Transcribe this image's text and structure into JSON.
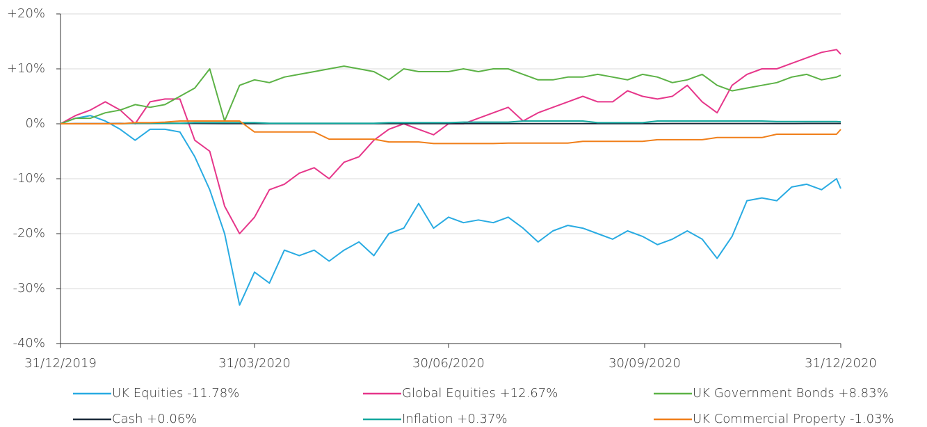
{
  "chart_data": {
    "type": "line",
    "x": [
      "2019-12-31",
      "2020-01-07",
      "2020-01-14",
      "2020-01-21",
      "2020-01-28",
      "2020-02-04",
      "2020-02-11",
      "2020-02-18",
      "2020-02-25",
      "2020-03-03",
      "2020-03-10",
      "2020-03-17",
      "2020-03-24",
      "2020-03-31",
      "2020-04-07",
      "2020-04-14",
      "2020-04-21",
      "2020-04-28",
      "2020-05-05",
      "2020-05-12",
      "2020-05-19",
      "2020-05-26",
      "2020-06-02",
      "2020-06-09",
      "2020-06-16",
      "2020-06-23",
      "2020-06-30",
      "2020-07-07",
      "2020-07-14",
      "2020-07-21",
      "2020-07-28",
      "2020-08-04",
      "2020-08-11",
      "2020-08-18",
      "2020-08-25",
      "2020-09-01",
      "2020-09-08",
      "2020-09-15",
      "2020-09-22",
      "2020-09-29",
      "2020-10-06",
      "2020-10-13",
      "2020-10-20",
      "2020-10-27",
      "2020-11-03",
      "2020-11-10",
      "2020-11-17",
      "2020-11-24",
      "2020-12-01",
      "2020-12-08",
      "2020-12-15",
      "2020-12-22",
      "2020-12-29",
      "2020-12-31"
    ],
    "series": [
      {
        "name": "UK Equities -11.78%",
        "color": "#29abe2",
        "values": [
          0,
          1,
          1.5,
          0.5,
          -1,
          -3,
          -1,
          -1,
          -1.5,
          -6,
          -12,
          -20,
          -33,
          -27,
          -29,
          -23,
          -24,
          -23,
          -25,
          -23,
          -21.5,
          -24,
          -20,
          -19,
          -14.5,
          -19,
          -17,
          -18,
          -17.5,
          -18,
          -17,
          -19,
          -21.5,
          -19.5,
          -18.5,
          -19,
          -20,
          -21,
          -19.5,
          -20.5,
          -22,
          -21,
          -19.5,
          -21,
          -24.5,
          -20.5,
          -14,
          -13.5,
          -14,
          -11.5,
          -11,
          -12,
          -10,
          -11.78
        ]
      },
      {
        "name": "Global Equities +12.67%",
        "color": "#e6368a",
        "values": [
          0,
          1.5,
          2.5,
          4,
          2.5,
          0,
          4,
          4.5,
          4.5,
          -3,
          -5,
          -15,
          -20,
          -17,
          -12,
          -11,
          -9,
          -8,
          -10,
          -7,
          -6,
          -3,
          -1,
          0,
          -1,
          -2,
          0,
          0,
          1,
          2,
          3,
          0.5,
          2,
          3,
          4,
          5,
          4,
          4,
          6,
          5,
          4.5,
          5,
          7,
          4,
          2,
          7,
          9,
          10,
          10,
          11,
          12,
          13,
          13.5,
          12.67
        ]
      },
      {
        "name": "UK Government Bonds +8.83%",
        "color": "#5cb246",
        "values": [
          0,
          1,
          1,
          2,
          2.5,
          3.5,
          3,
          3.5,
          5,
          6.5,
          10,
          0.5,
          7,
          8,
          7.5,
          8.5,
          9,
          9.5,
          10,
          10.5,
          10,
          9.5,
          8,
          10,
          9.5,
          9.5,
          9.5,
          10,
          9.5,
          10,
          10,
          9,
          8,
          8,
          8.5,
          8.5,
          9,
          8.5,
          8,
          9,
          8.5,
          7.5,
          8,
          9,
          7,
          6,
          6.5,
          7,
          7.5,
          8.5,
          9,
          8,
          8.5,
          8.83
        ]
      },
      {
        "name": "Cash +0.06%",
        "color": "#1b2a3a",
        "values": [
          0,
          0.02,
          0.03,
          0.04,
          0.05,
          0.06,
          0.06,
          0.07,
          0.07,
          0.06,
          0.05,
          0.04,
          0.03,
          0.03,
          0.03,
          0.03,
          0.03,
          0.03,
          0.03,
          0.03,
          0.03,
          0.03,
          0.03,
          0.03,
          0.03,
          0.03,
          0.03,
          0.03,
          0.03,
          0.03,
          0.03,
          0.03,
          0.03,
          0.04,
          0.04,
          0.04,
          0.04,
          0.04,
          0.04,
          0.04,
          0.04,
          0.05,
          0.05,
          0.05,
          0.05,
          0.05,
          0.05,
          0.05,
          0.05,
          0.05,
          0.06,
          0.06,
          0.06,
          0.06
        ]
      },
      {
        "name": "Inflation +0.37%",
        "color": "#13a89e",
        "values": [
          0,
          0,
          0,
          0,
          0,
          0.1,
          0.1,
          0.1,
          0.1,
          0.2,
          0.2,
          0.2,
          0.2,
          0.2,
          0.1,
          0.1,
          0.1,
          0.1,
          0.1,
          0.1,
          0.1,
          0.1,
          0.2,
          0.2,
          0.2,
          0.2,
          0.2,
          0.3,
          0.3,
          0.3,
          0.3,
          0.5,
          0.5,
          0.5,
          0.5,
          0.5,
          0.2,
          0.2,
          0.2,
          0.2,
          0.5,
          0.5,
          0.5,
          0.5,
          0.5,
          0.5,
          0.5,
          0.5,
          0.4,
          0.4,
          0.4,
          0.4,
          0.4,
          0.37
        ]
      },
      {
        "name": "UK Commercial Property -1.03%",
        "color": "#f07f1a",
        "values": [
          0,
          0,
          0,
          0,
          0,
          0.2,
          0.2,
          0.3,
          0.5,
          0.5,
          0.5,
          0.5,
          0.5,
          -1.5,
          -1.5,
          -1.5,
          -1.5,
          -1.5,
          -2.8,
          -2.8,
          -2.8,
          -2.8,
          -3.3,
          -3.3,
          -3.3,
          -3.6,
          -3.6,
          -3.6,
          -3.6,
          -3.6,
          -3.5,
          -3.5,
          -3.5,
          -3.5,
          -3.5,
          -3.2,
          -3.2,
          -3.2,
          -3.2,
          -3.2,
          -2.9,
          -2.9,
          -2.9,
          -2.9,
          -2.5,
          -2.5,
          -2.5,
          -2.5,
          -1.9,
          -1.9,
          -1.9,
          -1.9,
          -1.9,
          -1.03
        ]
      }
    ],
    "xlim": [
      "2019-12-31",
      "2020-12-31"
    ],
    "xticks": [
      {
        "value": "2019-12-31",
        "label": "31/12/2019"
      },
      {
        "value": "2020-03-31",
        "label": "31/03/2020"
      },
      {
        "value": "2020-06-30",
        "label": "30/06/2020"
      },
      {
        "value": "2020-09-30",
        "label": "30/09/2020"
      },
      {
        "value": "2020-12-31",
        "label": "31/12/2020"
      }
    ],
    "ylim": [
      -40,
      20
    ],
    "yticks": [
      {
        "value": 20,
        "label": "+20%"
      },
      {
        "value": 10,
        "label": "+10%"
      },
      {
        "value": 0,
        "label": "0%"
      },
      {
        "value": -10,
        "label": "-10%"
      },
      {
        "value": -20,
        "label": "-20%"
      },
      {
        "value": -30,
        "label": "-30%"
      },
      {
        "value": -40,
        "label": "-40%"
      }
    ],
    "grid": true
  }
}
